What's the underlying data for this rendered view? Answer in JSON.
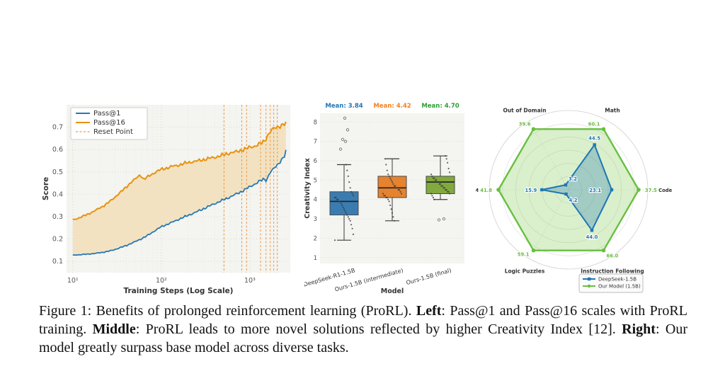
{
  "figure": {
    "caption_segments": [
      {
        "text": "Figure 1: Benefits of prolonged reinforcement learning (ProRL). ",
        "bold": false
      },
      {
        "text": "Left",
        "bold": true
      },
      {
        "text": ": Pass@1 and Pass@16 scales with ProRL training. ",
        "bold": false
      },
      {
        "text": "Middle",
        "bold": true
      },
      {
        "text": ": ProRL leads to more novel solutions reflected by higher Creativity Index [12]. ",
        "bold": false
      },
      {
        "text": "Right",
        "bold": true
      },
      {
        "text": ": Our model greatly surpass base model across diverse tasks.",
        "bold": false
      }
    ]
  },
  "chart_data": [
    {
      "type": "line",
      "title": "",
      "xlabel": "Training Steps (Log Scale)",
      "ylabel": "Score",
      "x_scale": "log",
      "xlim": [
        8.5,
        2860
      ],
      "ylim": [
        0.05,
        0.8
      ],
      "y_ticks": [
        0.1,
        0.2,
        0.3,
        0.4,
        0.5,
        0.6,
        0.7
      ],
      "x_tick_values": [
        10,
        100,
        1000
      ],
      "x_tick_labels": [
        "10¹",
        "10²",
        "10³"
      ],
      "legend": [
        "Pass@1",
        "Pass@16",
        "Reset Point"
      ],
      "legend_position": "upper left",
      "grid": true,
      "reset_steps": [
        510,
        810,
        920,
        1320,
        1520,
        1700,
        1860,
        2040
      ],
      "colors": {
        "bg": "#f4f4f0",
        "fill": "#f2e2c1",
        "reset": "#ee9a49"
      },
      "series": [
        {
          "name": "Pass@1",
          "color": "#2878b5",
          "points": [
            [
              10,
              0.128
            ],
            [
              12,
              0.13
            ],
            [
              15,
              0.133
            ],
            [
              18,
              0.136
            ],
            [
              22,
              0.141
            ],
            [
              27,
              0.148
            ],
            [
              33,
              0.159
            ],
            [
              40,
              0.171
            ],
            [
              48,
              0.184
            ],
            [
              58,
              0.199
            ],
            [
              70,
              0.216
            ],
            [
              85,
              0.238
            ],
            [
              100,
              0.255
            ],
            [
              120,
              0.268
            ],
            [
              145,
              0.282
            ],
            [
              175,
              0.296
            ],
            [
              210,
              0.309
            ],
            [
              255,
              0.323
            ],
            [
              310,
              0.338
            ],
            [
              375,
              0.353
            ],
            [
              450,
              0.367
            ],
            [
              545,
              0.381
            ],
            [
              660,
              0.396
            ],
            [
              800,
              0.412
            ],
            [
              965,
              0.43
            ],
            [
              1080,
              0.441
            ],
            [
              1300,
              0.459
            ],
            [
              1450,
              0.468
            ],
            [
              1550,
              0.462
            ],
            [
              1650,
              0.492
            ],
            [
              1800,
              0.508
            ],
            [
              1950,
              0.523
            ],
            [
              2100,
              0.537
            ],
            [
              2250,
              0.552
            ],
            [
              2400,
              0.565
            ],
            [
              2480,
              0.572
            ],
            [
              2550,
              0.592
            ]
          ]
        },
        {
          "name": "Pass@16",
          "color": "#e8920e",
          "points": [
            [
              10,
              0.285
            ],
            [
              12,
              0.296
            ],
            [
              15,
              0.312
            ],
            [
              18,
              0.328
            ],
            [
              22,
              0.347
            ],
            [
              27,
              0.372
            ],
            [
              33,
              0.402
            ],
            [
              40,
              0.432
            ],
            [
              45,
              0.452
            ],
            [
              52,
              0.472
            ],
            [
              58,
              0.488
            ],
            [
              63,
              0.466
            ],
            [
              70,
              0.478
            ],
            [
              80,
              0.492
            ],
            [
              90,
              0.503
            ],
            [
              100,
              0.512
            ],
            [
              115,
              0.517
            ],
            [
              135,
              0.526
            ],
            [
              160,
              0.531
            ],
            [
              190,
              0.54
            ],
            [
              230,
              0.546
            ],
            [
              280,
              0.552
            ],
            [
              340,
              0.56
            ],
            [
              410,
              0.566
            ],
            [
              500,
              0.576
            ],
            [
              600,
              0.585
            ],
            [
              720,
              0.591
            ],
            [
              860,
              0.601
            ],
            [
              1000,
              0.61
            ],
            [
              1150,
              0.616
            ],
            [
              1300,
              0.626
            ],
            [
              1450,
              0.636
            ],
            [
              1600,
              0.666
            ],
            [
              1750,
              0.686
            ],
            [
              1900,
              0.696
            ],
            [
              2050,
              0.701
            ],
            [
              2200,
              0.706
            ],
            [
              2350,
              0.711
            ],
            [
              2550,
              0.716
            ]
          ]
        }
      ]
    },
    {
      "type": "box",
      "xlabel": "Model",
      "ylabel": "Creativity Index",
      "ylim": [
        0.7,
        8.45
      ],
      "y_ticks": [
        1,
        2,
        3,
        4,
        5,
        6,
        7,
        8
      ],
      "models": [
        "DeepSeek-R1-1.5B",
        "Ours-1.5B (intermediate)",
        "Ours-1.5B (final)"
      ],
      "means": [
        3.84,
        4.42,
        4.7
      ],
      "mean_labels": [
        "Mean: 3.84",
        "Mean: 4.42",
        "Mean: 4.70"
      ],
      "mean_colors": [
        "#1f77b4",
        "#f28124",
        "#2e9e36"
      ],
      "colors": [
        "#3b7cb0",
        "#e5832f",
        "#81a93e"
      ],
      "bg": "#f4f4f0",
      "stats": [
        {
          "whislo": 1.9,
          "q1": 3.2,
          "med": 3.9,
          "q3": 4.4,
          "whishi": 5.8,
          "outliers": [
            6.6,
            7.0,
            7.1,
            7.6,
            8.2
          ]
        },
        {
          "whislo": 2.9,
          "q1": 4.1,
          "med": 4.6,
          "q3": 5.2,
          "whishi": 6.1,
          "outliers": []
        },
        {
          "whislo": 4.0,
          "q1": 4.3,
          "med": 4.9,
          "q3": 5.2,
          "whishi": 6.25,
          "outliers": [
            2.95,
            3.0
          ]
        }
      ],
      "points": [
        [
          1.9,
          2.2,
          2.5,
          2.7,
          2.9,
          3.0,
          3.1,
          3.2,
          3.3,
          3.4,
          3.5,
          3.6,
          3.7,
          3.8,
          3.9,
          3.9,
          4.0,
          4.0,
          4.1,
          4.1,
          4.2,
          4.3,
          4.4,
          4.6,
          4.9,
          5.2,
          5.5,
          5.8
        ],
        [
          2.9,
          3.1,
          3.3,
          3.5,
          3.7,
          3.9,
          4.0,
          4.1,
          4.1,
          4.2,
          4.2,
          4.3,
          4.3,
          4.4,
          4.5,
          4.5,
          4.6,
          4.6,
          4.7,
          4.7,
          4.8,
          4.9,
          5.0,
          5.1,
          5.2,
          5.3,
          5.5,
          5.8,
          6.1
        ],
        [
          4.0,
          4.1,
          4.2,
          4.3,
          4.3,
          4.4,
          4.4,
          4.5,
          4.5,
          4.6,
          4.6,
          4.7,
          4.7,
          4.8,
          4.8,
          4.9,
          4.9,
          5.0,
          5.0,
          5.1,
          5.1,
          5.2,
          5.3,
          5.4,
          5.6,
          5.9,
          6.1,
          6.25
        ]
      ]
    },
    {
      "type": "radar",
      "axes": [
        "Math",
        "Code",
        "Instruction Following",
        "Logic Puzzles",
        "STEM",
        "Out of Domain"
      ],
      "axis_angles_deg": [
        60,
        0,
        -60,
        -120,
        180,
        120
      ],
      "rings": 6,
      "normalization": "per-axis max equals Our Model value",
      "series": [
        {
          "name": "DeepSeek-1.5B",
          "color": "#1f77b4",
          "marker": "square",
          "values": [
            44.5,
            23.1,
            44.0,
            4.2,
            15.9,
            3.2
          ]
        },
        {
          "name": "Our Model (1.5B)",
          "color": "#68bf40",
          "marker": "circle",
          "values": [
            60.1,
            37.5,
            66.0,
            59.1,
            41.8,
            39.6
          ]
        }
      ],
      "blue_fill": "rgba(31,119,180,0.30)",
      "green_fill": "rgba(144,205,96,0.33)",
      "legend_position": "bottom"
    }
  ]
}
